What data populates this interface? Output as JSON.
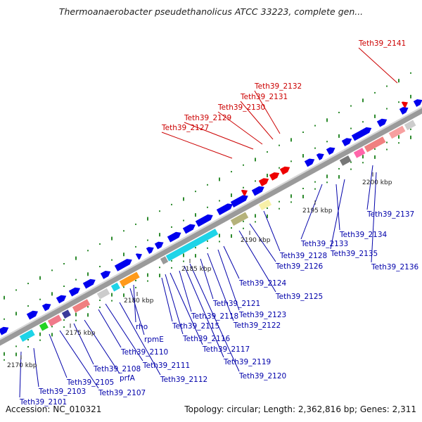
{
  "title": "Thermoanaerobacter pseudethanolicus ATCC 33223, complete gen...",
  "footer": {
    "accession": "Accession: NC_010321",
    "summary": "Topology: circular; Length: 2,362,816 bp; Genes: 2,311"
  },
  "colors": {
    "forward_gene": "#0000ee",
    "red_gene": "#ee0000",
    "red_label": "#cc0000",
    "blue_label": "#0000aa",
    "tick": "#2e8b2e",
    "backbone": "#888888"
  },
  "scale_labels": [
    {
      "text": "2170 kbp",
      "kbp": 2170
    },
    {
      "text": "2175 kbp",
      "kbp": 2175
    },
    {
      "text": "2180 kbp",
      "kbp": 2180
    },
    {
      "text": "2185 kbp",
      "kbp": 2185
    },
    {
      "text": "2190 kbp",
      "kbp": 2190
    },
    {
      "text": "2195 kbp",
      "kbp": 2195
    },
    {
      "text": "2200 kbp",
      "kbp": 2200
    }
  ],
  "red_labels": [
    "Teth39_2127",
    "Teth39_2129",
    "Teth39_2130",
    "Teth39_2131",
    "Teth39_2132",
    "Teth39_2141"
  ],
  "blue_labels": [
    "Teth39_2101",
    "Teth39_2103",
    "Teth39_2105",
    "Teth39_2107",
    "Teth39_2108",
    "prfA",
    "Teth39_2110",
    "Teth39_2111",
    "Teth39_2112",
    "rpmE",
    "rho",
    "Teth39_2115",
    "Teth39_2116",
    "Teth39_2117",
    "Teth39_2118",
    "Teth39_2119",
    "Teth39_2120",
    "Teth39_2121",
    "Teth39_2122",
    "Teth39_2123",
    "Teth39_2124",
    "Teth39_2125",
    "Teth39_2126",
    "Teth39_2128",
    "Teth39_2133",
    "Teth39_2134",
    "Teth39_2135",
    "Teth39_2136",
    "Teth39_2137"
  ]
}
